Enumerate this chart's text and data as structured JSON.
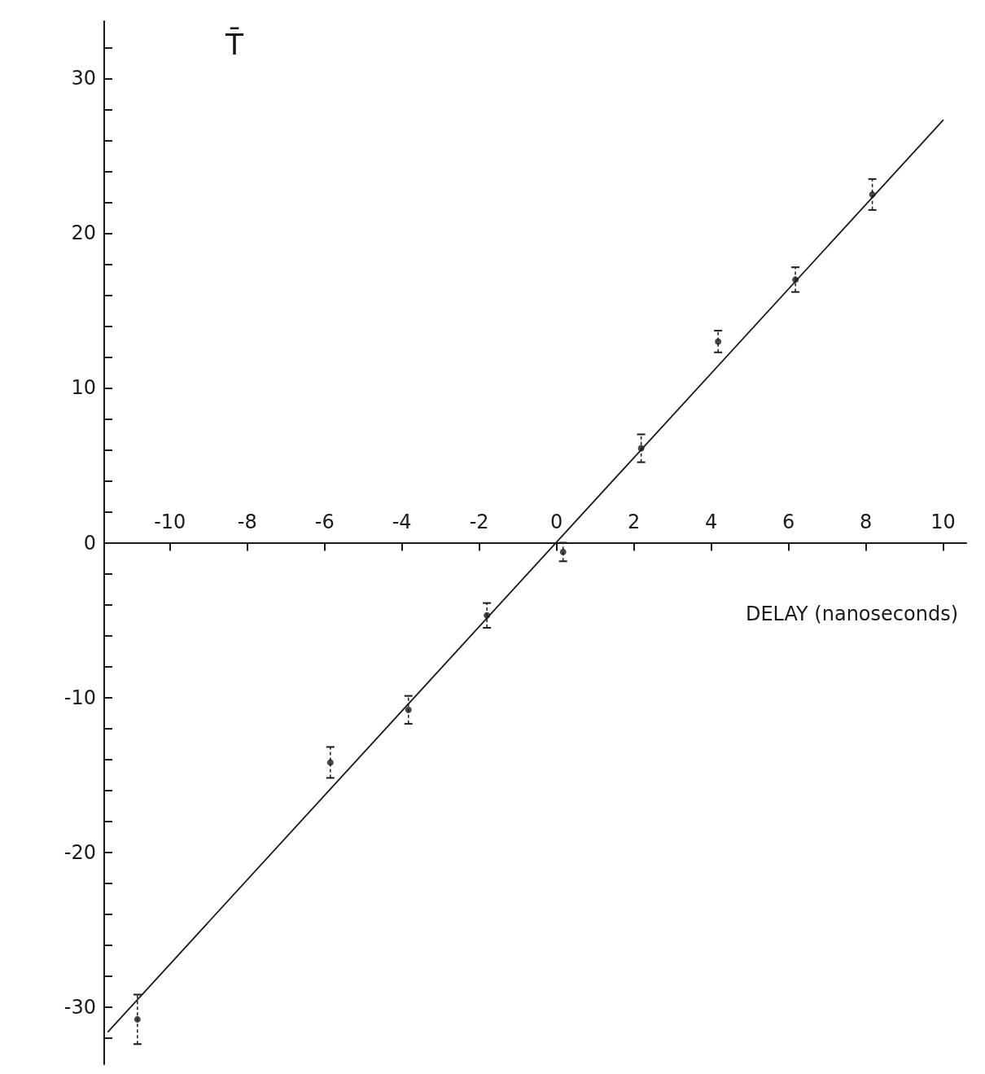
{
  "chart_data": {
    "type": "scatter",
    "xlabel": "DELAY (nanoseconds)",
    "ylabel": "T̄",
    "xlim": [
      -11.7,
      10.6
    ],
    "ylim": [
      -33.7,
      33.7
    ],
    "xticks": [
      -10,
      -8,
      -6,
      -4,
      -2,
      0,
      2,
      4,
      6,
      8,
      10
    ],
    "yticks": [
      {
        "value": -32,
        "label": null
      },
      -30,
      {
        "value": -28,
        "label": null
      },
      {
        "value": -26,
        "label": null
      },
      {
        "value": -24,
        "label": null
      },
      {
        "value": -22,
        "label": null
      },
      -20,
      {
        "value": -18,
        "label": null
      },
      {
        "value": -16,
        "label": null
      },
      {
        "value": -14,
        "label": null
      },
      {
        "value": -12,
        "label": null
      },
      -10,
      {
        "value": -8,
        "label": null
      },
      {
        "value": -6,
        "label": null
      },
      {
        "value": -4,
        "label": null
      },
      {
        "value": -2,
        "label": null
      },
      0,
      {
        "value": 2,
        "label": null
      },
      {
        "value": 4,
        "label": null
      },
      {
        "value": 6,
        "label": null
      },
      {
        "value": 8,
        "label": null
      },
      10,
      {
        "value": 12,
        "label": null
      },
      {
        "value": 14,
        "label": null
      },
      {
        "value": 16,
        "label": null
      },
      {
        "value": 18,
        "label": null
      },
      20,
      {
        "value": 22,
        "label": null
      },
      {
        "value": 24,
        "label": null
      },
      {
        "value": 26,
        "label": null
      },
      {
        "value": 28,
        "label": null
      },
      30,
      {
        "value": 32,
        "label": null
      }
    ],
    "grid": false,
    "series": [
      {
        "color": "#1a1a1a",
        "marker": "circle",
        "x": [
          -10.84,
          -5.85,
          -3.83,
          -1.8,
          0.17,
          2.19,
          4.18,
          6.18,
          8.17
        ],
        "values": [
          -30.8,
          -14.2,
          -10.8,
          -4.7,
          -0.6,
          6.1,
          13.0,
          17.0,
          22.5
        ],
        "errors": [
          1.6,
          1.0,
          0.9,
          0.8,
          0.6,
          0.9,
          0.7,
          0.8,
          1.0
        ]
      },
      {
        "type": "line",
        "color": "#1a1a1a",
        "line_style": "solid",
        "x": [
          -11.6,
          10
        ],
        "values": [
          -31.6,
          27.3
        ]
      }
    ]
  }
}
